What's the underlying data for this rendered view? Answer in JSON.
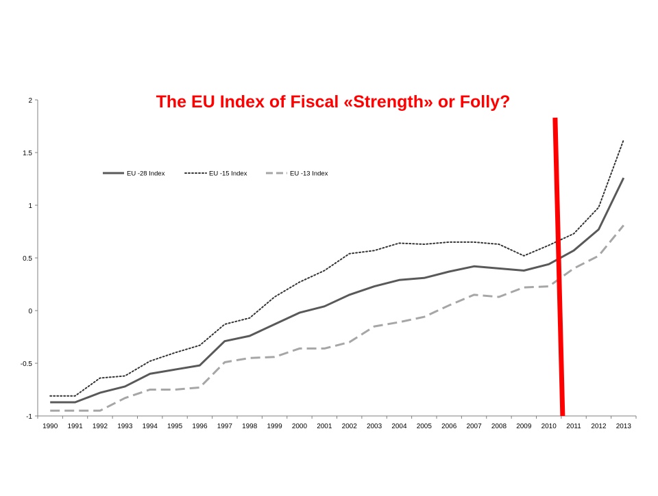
{
  "chart_data": {
    "type": "line",
    "title": "The EU Index of Fiscal «Strength» or Folly?",
    "xlabel": "",
    "ylabel": "",
    "categories": [
      "1990",
      "1991",
      "1992",
      "1993",
      "1994",
      "1995",
      "1996",
      "1997",
      "1998",
      "1999",
      "2000",
      "2001",
      "2002",
      "2003",
      "2004",
      "2005",
      "2006",
      "2007",
      "2008",
      "2009",
      "2010",
      "2011",
      "2012",
      "2013"
    ],
    "ylim": [
      -1,
      2
    ],
    "yticks": [
      "2",
      "1.5",
      "1",
      "0.5",
      "0",
      "-0.5",
      "-1"
    ],
    "grid": false,
    "legend_position": "top-left",
    "series": [
      {
        "name": "EU -28 Index",
        "style": "solid",
        "color": "#595959",
        "values": [
          -0.87,
          -0.87,
          -0.78,
          -0.72,
          -0.6,
          -0.56,
          -0.52,
          -0.29,
          -0.24,
          -0.13,
          -0.02,
          0.04,
          0.15,
          0.23,
          0.29,
          0.31,
          0.37,
          0.42,
          0.4,
          0.38,
          0.44,
          0.57,
          0.77,
          1.26
        ]
      },
      {
        "name": "EU -15 Index",
        "style": "dotted",
        "color": "#333333",
        "values": [
          -0.81,
          -0.81,
          -0.64,
          -0.62,
          -0.48,
          -0.4,
          -0.33,
          -0.13,
          -0.07,
          0.13,
          0.27,
          0.38,
          0.54,
          0.57,
          0.64,
          0.63,
          0.65,
          0.65,
          0.63,
          0.52,
          0.62,
          0.73,
          0.98,
          1.62
        ]
      },
      {
        "name": "EU -13 Index",
        "style": "dashed",
        "color": "#a6a6a6",
        "values": [
          -0.95,
          -0.95,
          -0.95,
          -0.83,
          -0.75,
          -0.75,
          -0.73,
          -0.49,
          -0.45,
          -0.44,
          -0.36,
          -0.36,
          -0.3,
          -0.15,
          -0.11,
          -0.06,
          0.05,
          0.15,
          0.13,
          0.22,
          0.23,
          0.4,
          0.52,
          0.81
        ]
      }
    ],
    "annotation": {
      "type": "vertical-line",
      "color": "#ff0000",
      "x_between": [
        "2010",
        "2011"
      ]
    }
  },
  "colors": {
    "title": "#ff0000",
    "axis": "#7f7f7f",
    "marker_line": "#ff0000"
  }
}
